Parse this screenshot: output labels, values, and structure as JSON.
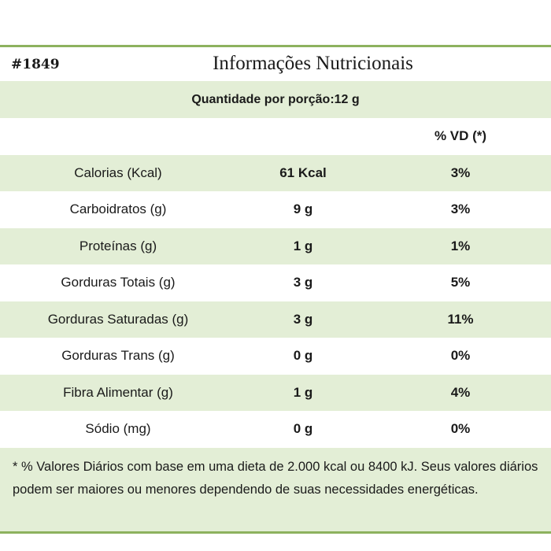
{
  "header": {
    "code": "#1849",
    "title": "Informações Nutricionais",
    "serving": "Quantidade por porção:12 g"
  },
  "columns": {
    "vd_header": "% VD (*)"
  },
  "rows": [
    {
      "name": "Calorias (Kcal)",
      "qty": "61 Kcal",
      "vd": "3%"
    },
    {
      "name": "Carboidratos (g)",
      "qty": "9 g",
      "vd": "3%"
    },
    {
      "name": "Proteínas (g)",
      "qty": "1 g",
      "vd": "1%"
    },
    {
      "name": "Gorduras Totais (g)",
      "qty": "3 g",
      "vd": "5%"
    },
    {
      "name": "Gorduras Saturadas (g)",
      "qty": "3 g",
      "vd": "11%"
    },
    {
      "name": "Gorduras Trans (g)",
      "qty": "0 g",
      "vd": "0%"
    },
    {
      "name": "Fibra Alimentar (g)",
      "qty": "1 g",
      "vd": "4%"
    },
    {
      "name": "Sódio (mg)",
      "qty": "0 g",
      "vd": "0%"
    }
  ],
  "footnote": "* % Valores Diários com base em uma dieta de 2.000 kcal ou 8400 kJ. Seus valores diários podem ser maiores ou menores dependendo de suas necessidades energéticas.",
  "colors": {
    "shade": "#e3eed6",
    "border": "#8db25e"
  }
}
